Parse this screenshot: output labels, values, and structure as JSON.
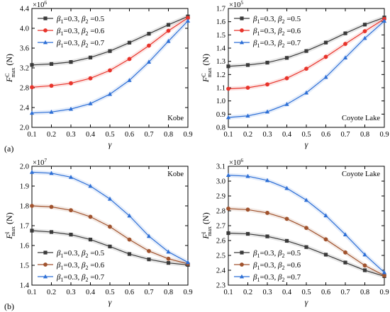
{
  "figure_labels": {
    "a": "(a)",
    "b": "(b)"
  },
  "chart_data": [
    {
      "id": "tl",
      "type": "line",
      "annotation": "Kobe",
      "annotation_pos": "bottom-right",
      "legend_pos": "top-left",
      "multiplier": "×10",
      "multiplier_exp": "6",
      "ylabel_main": "F",
      "ylabel_sup": "C",
      "ylabel_sub": "max",
      "ylabel_unit": "(N)",
      "xlabel": "γ",
      "x": [
        0.1,
        0.2,
        0.3,
        0.4,
        0.5,
        0.6,
        0.7,
        0.8,
        0.9
      ],
      "xlim": [
        0.1,
        0.9
      ],
      "ylim": [
        2.0,
        4.4
      ],
      "xticks": [
        "0.1",
        "0.2",
        "0.3",
        "0.4",
        "0.5",
        "0.6",
        "0.7",
        "0.8",
        "0.9"
      ],
      "yticks": [
        "2.0",
        "2.4",
        "2.8",
        "3.2",
        "3.6",
        "4.0",
        "4.4"
      ],
      "series": [
        {
          "name": "β1=0.3, β2 =0.5",
          "color": "#3a3a3a",
          "marker": "square",
          "values": [
            3.26,
            3.28,
            3.32,
            3.41,
            3.54,
            3.71,
            3.89,
            4.07,
            4.24
          ]
        },
        {
          "name": "β1=0.3, β2 =0.6",
          "color": "#e8332a",
          "marker": "circle",
          "values": [
            2.81,
            2.84,
            2.89,
            2.99,
            3.15,
            3.38,
            3.65,
            3.95,
            4.21
          ]
        },
        {
          "name": "β1=0.3, β2 =0.7",
          "color": "#2d6fd6",
          "marker": "triangle",
          "values": [
            2.29,
            2.31,
            2.37,
            2.48,
            2.67,
            2.95,
            3.32,
            3.74,
            4.15
          ]
        }
      ]
    },
    {
      "id": "tr",
      "type": "line",
      "annotation": "Coyote Lake",
      "annotation_pos": "bottom-right",
      "legend_pos": "top-left",
      "multiplier": "×10",
      "multiplier_exp": "5",
      "ylabel_main": "F",
      "ylabel_sup": "C",
      "ylabel_sub": "max",
      "ylabel_unit": "(N)",
      "xlabel": "γ",
      "x": [
        0.1,
        0.2,
        0.3,
        0.4,
        0.5,
        0.6,
        0.7,
        0.8,
        0.9
      ],
      "xlim": [
        0.1,
        0.9
      ],
      "ylim": [
        0.8,
        1.7
      ],
      "xticks": [
        "0.1",
        "0.2",
        "0.3",
        "0.4",
        "0.5",
        "0.6",
        "0.7",
        "0.8",
        "0.9"
      ],
      "yticks": [
        "0.8",
        "0.9",
        "1.0",
        "1.1",
        "1.2",
        "1.3",
        "1.4",
        "1.5",
        "1.6",
        "1.7"
      ],
      "series": [
        {
          "name": "β1=0.3, β2 =0.5",
          "color": "#3a3a3a",
          "marker": "square",
          "values": [
            1.262,
            1.272,
            1.29,
            1.326,
            1.378,
            1.442,
            1.512,
            1.578,
            1.632
          ]
        },
        {
          "name": "β1=0.3, β2 =0.6",
          "color": "#e8332a",
          "marker": "circle",
          "values": [
            1.092,
            1.1,
            1.125,
            1.172,
            1.244,
            1.334,
            1.432,
            1.528,
            1.621
          ]
        },
        {
          "name": "β1=0.3, β2 =0.7",
          "color": "#2d6fd6",
          "marker": "triangle",
          "values": [
            0.875,
            0.887,
            0.918,
            0.975,
            1.062,
            1.18,
            1.327,
            1.475,
            1.605
          ]
        }
      ]
    },
    {
      "id": "bl",
      "type": "line",
      "annotation": "Kobe",
      "annotation_pos": "top-right",
      "legend_pos": "bottom-left",
      "multiplier": "×10",
      "multiplier_exp": "7",
      "ylabel_main": "F",
      "ylabel_sup": "I",
      "ylabel_sub": "max",
      "ylabel_unit": "(N)",
      "xlabel": "γ",
      "x": [
        0.1,
        0.2,
        0.3,
        0.4,
        0.5,
        0.6,
        0.7,
        0.8,
        0.9
      ],
      "xlim": [
        0.1,
        0.9
      ],
      "ylim": [
        1.4,
        2.0
      ],
      "xticks": [
        "0.1",
        "0.2",
        "0.3",
        "0.4",
        "0.5",
        "0.6",
        "0.7",
        "0.8",
        "0.9"
      ],
      "yticks": [
        "1.4",
        "1.5",
        "1.6",
        "1.7",
        "1.8",
        "1.9",
        "2.0"
      ],
      "series": [
        {
          "name": "β1=0.3, β2 =0.5",
          "color": "#3a3a3a",
          "marker": "square",
          "values": [
            1.675,
            1.668,
            1.655,
            1.63,
            1.595,
            1.557,
            1.53,
            1.512,
            1.502
          ]
        },
        {
          "name": "β1=0.3, β2 =0.6",
          "color": "#a0522d",
          "marker": "circle",
          "values": [
            1.8,
            1.795,
            1.778,
            1.745,
            1.695,
            1.63,
            1.572,
            1.533,
            1.508
          ]
        },
        {
          "name": "β1=0.3, β2 =0.7",
          "color": "#2d6fd6",
          "marker": "triangle",
          "values": [
            1.97,
            1.965,
            1.945,
            1.9,
            1.835,
            1.75,
            1.647,
            1.568,
            1.515
          ]
        }
      ]
    },
    {
      "id": "br",
      "type": "line",
      "annotation": "Coyote Lake",
      "annotation_pos": "top-right",
      "legend_pos": "bottom-left",
      "multiplier": "×10",
      "multiplier_exp": "6",
      "ylabel_main": "F",
      "ylabel_sup": "I",
      "ylabel_sub": "max",
      "ylabel_unit": "(N)",
      "xlabel": "γ",
      "x": [
        0.1,
        0.2,
        0.3,
        0.4,
        0.5,
        0.6,
        0.7,
        0.8,
        0.9
      ],
      "xlim": [
        0.1,
        0.9
      ],
      "ylim": [
        2.3,
        3.1
      ],
      "xticks": [
        "0.1",
        "0.2",
        "0.3",
        "0.4",
        "0.5",
        "0.6",
        "0.7",
        "0.8",
        "0.9"
      ],
      "yticks": [
        "2.3",
        "2.4",
        "2.5",
        "2.6",
        "2.7",
        "2.8",
        "2.9",
        "3.0",
        "3.1"
      ],
      "series": [
        {
          "name": "β1=0.3, β2 =0.5",
          "color": "#3a3a3a",
          "marker": "square",
          "values": [
            2.65,
            2.645,
            2.628,
            2.598,
            2.556,
            2.505,
            2.452,
            2.4,
            2.36
          ]
        },
        {
          "name": "β1=0.3, β2 =0.6",
          "color": "#a0522d",
          "marker": "circle",
          "values": [
            2.815,
            2.808,
            2.786,
            2.746,
            2.685,
            2.608,
            2.52,
            2.432,
            2.365
          ]
        },
        {
          "name": "β1=0.3, β2 =0.7",
          "color": "#2d6fd6",
          "marker": "triangle",
          "values": [
            3.04,
            3.033,
            3.005,
            2.952,
            2.872,
            2.768,
            2.64,
            2.505,
            2.385
          ]
        }
      ]
    }
  ]
}
